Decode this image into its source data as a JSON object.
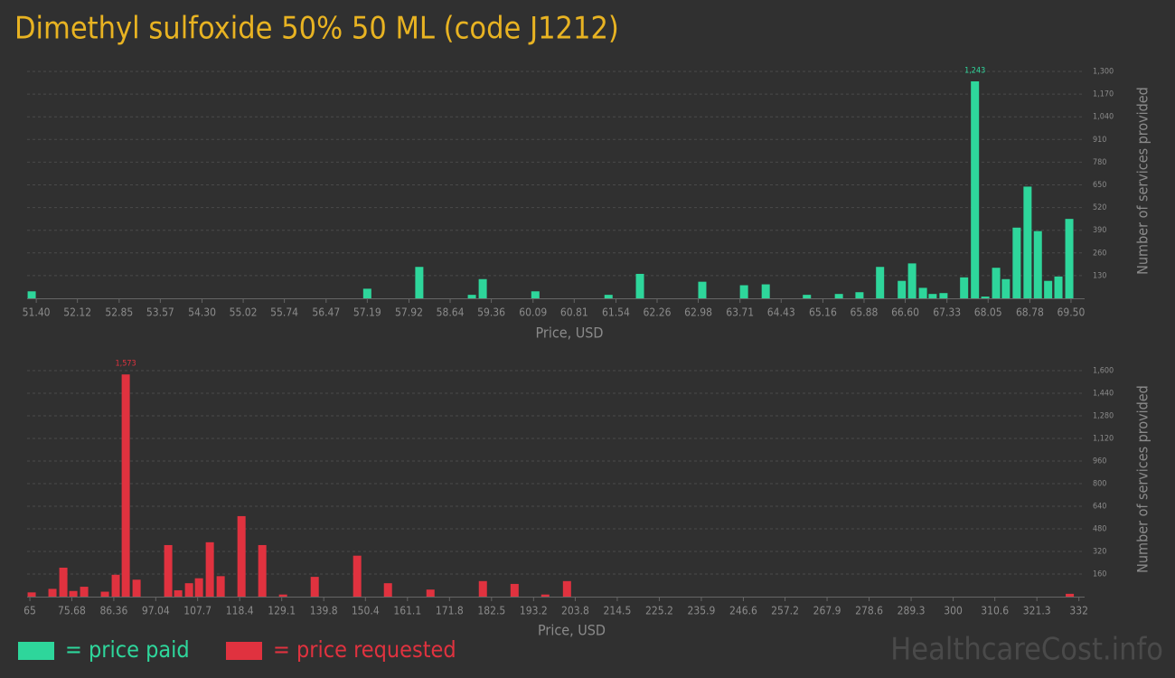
{
  "title": "Dimethyl sulfoxide 50% 50 ML (code J1212)",
  "watermark": "HealthcareCost.info",
  "chart_data": [
    {
      "type": "bar",
      "x_label": "Price, USD",
      "y_label": "Number of services provided",
      "xlim": [
        51.24,
        69.58
      ],
      "ylim": [
        0,
        1300
      ],
      "xticks": [
        {
          "value": 51.4,
          "label": "51.40"
        },
        52.12,
        52.85,
        53.57,
        {
          "value": 54.3,
          "label": "54.30"
        },
        55.02,
        55.74,
        56.47,
        57.19,
        57.92,
        58.64,
        59.36,
        60.09,
        60.81,
        61.54,
        62.26,
        62.98,
        63.71,
        64.43,
        65.16,
        65.88,
        {
          "value": 66.6,
          "label": "66.60"
        },
        67.33,
        68.05,
        68.78,
        {
          "value": 69.5,
          "label": "69.50"
        }
      ],
      "yticks": [
        130,
        260,
        390,
        520,
        650,
        780,
        910,
        {
          "value": 1040,
          "label": "1,040"
        },
        {
          "value": 1170,
          "label": "1,170"
        },
        {
          "value": 1300,
          "label": "1,300"
        }
      ],
      "grid": true,
      "x": [
        51.32,
        57.19,
        58.1,
        59.02,
        59.21,
        60.13,
        61.41,
        61.96,
        63.05,
        63.78,
        64.16,
        64.88,
        65.44,
        65.8,
        66.16,
        66.54,
        66.72,
        66.91,
        67.08,
        67.27,
        67.63,
        67.82,
        68.0,
        68.19,
        68.36,
        68.55,
        68.74,
        68.92,
        69.1,
        69.28,
        69.47
      ],
      "series": [
        {
          "name": "= price paid",
          "color": "#2ed69b",
          "values": [
            40,
            55,
            180,
            20,
            110,
            40,
            20,
            140,
            95,
            75,
            80,
            20,
            25,
            35,
            180,
            100,
            200,
            60,
            25,
            30,
            120,
            1243,
            10,
            175,
            110,
            405,
            640,
            385,
            100,
            125,
            455
          ],
          "value_labels": [
            null,
            null,
            null,
            null,
            null,
            null,
            null,
            null,
            null,
            null,
            null,
            null,
            null,
            null,
            null,
            null,
            null,
            null,
            null,
            null,
            null,
            "1,243",
            null,
            null,
            null,
            null,
            null,
            null,
            null,
            null,
            null
          ]
        }
      ]
    },
    {
      "type": "bar",
      "x_label": "Price, USD",
      "y_label": "Number of services provided",
      "xlim": [
        64.3,
        332.3
      ],
      "ylim": [
        0,
        1600
      ],
      "xticks": [
        65,
        75.68,
        86.36,
        97.04,
        107.7,
        118.4,
        129.1,
        139.8,
        150.4,
        161.1,
        171.8,
        182.5,
        193.2,
        203.8,
        214.5,
        225.2,
        235.9,
        246.6,
        257.2,
        267.9,
        278.6,
        289.3,
        300,
        310.6,
        321.3,
        332
      ],
      "yticks": [
        160,
        320,
        480,
        640,
        800,
        960,
        {
          "value": 1120,
          "label": "1,120"
        },
        {
          "value": 1280,
          "label": "1,280"
        },
        {
          "value": 1440,
          "label": "1,440"
        },
        {
          "value": 1600,
          "label": "1,600"
        }
      ],
      "grid": true,
      "x": [
        65.46,
        70.75,
        73.52,
        76.05,
        78.81,
        84.1,
        86.86,
        89.4,
        92.16,
        100.21,
        102.74,
        105.51,
        108.04,
        110.8,
        113.56,
        118.86,
        124.15,
        129.44,
        137.5,
        148.31,
        156.14,
        166.96,
        180.3,
        188.36,
        196.18,
        201.71,
        329.67
      ],
      "series": [
        {
          "name": "= price requested",
          "color": "#e0323f",
          "values": [
            30,
            55,
            205,
            40,
            70,
            35,
            155,
            1573,
            120,
            365,
            45,
            95,
            130,
            385,
            145,
            570,
            365,
            15,
            140,
            290,
            95,
            50,
            110,
            90,
            15,
            110,
            20
          ],
          "value_labels": [
            null,
            null,
            null,
            null,
            null,
            null,
            null,
            "1,573",
            null,
            null,
            null,
            null,
            null,
            null,
            null,
            null,
            null,
            null,
            null,
            null,
            null,
            null,
            null,
            null,
            null,
            null,
            null
          ]
        }
      ]
    }
  ]
}
